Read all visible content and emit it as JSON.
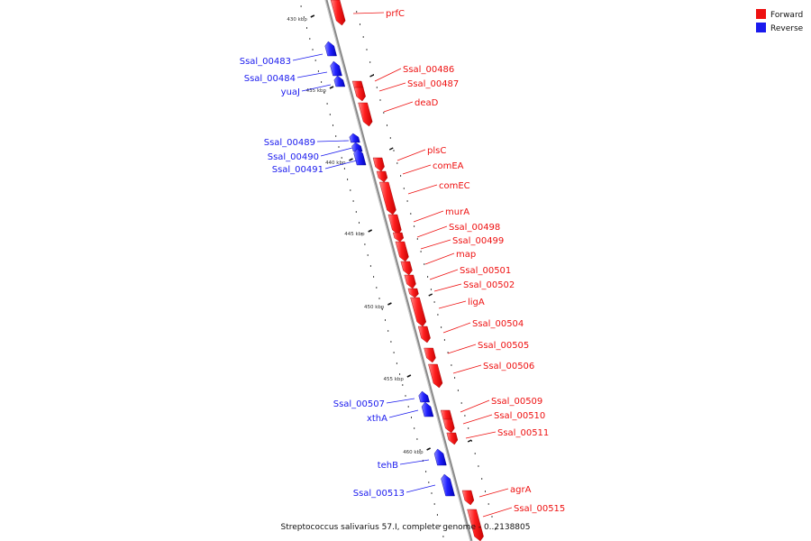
{
  "colors": {
    "forward": "#ee1111",
    "reverse": "#1a1aee",
    "backbone": "#8a8a8a"
  },
  "legend": [
    {
      "label": "Forward",
      "strand": "forward"
    },
    {
      "label": "Reverse",
      "strand": "reverse"
    }
  ],
  "caption": "Streptococcus salivarius 57.I, complete genome - 0..2138805",
  "ticks": [
    "430 kbp",
    "435 kbp",
    "440 kbp",
    "445 kbp",
    "450 kbp",
    "455 kbp",
    "460 kbp"
  ],
  "genes": [
    {
      "name": "prfC",
      "strand": "forward"
    },
    {
      "name": "Ssal_00483",
      "strand": "reverse"
    },
    {
      "name": "Ssal_00484",
      "strand": "reverse"
    },
    {
      "name": "yuaJ",
      "strand": "reverse"
    },
    {
      "name": "Ssal_00486",
      "strand": "forward"
    },
    {
      "name": "Ssal_00487",
      "strand": "forward"
    },
    {
      "name": "deaD",
      "strand": "forward"
    },
    {
      "name": "Ssal_00489",
      "strand": "reverse"
    },
    {
      "name": "Ssal_00490",
      "strand": "reverse"
    },
    {
      "name": "Ssal_00491",
      "strand": "reverse"
    },
    {
      "name": "plsC",
      "strand": "forward"
    },
    {
      "name": "comEA",
      "strand": "forward"
    },
    {
      "name": "comEC",
      "strand": "forward"
    },
    {
      "name": "murA",
      "strand": "forward"
    },
    {
      "name": "Ssal_00498",
      "strand": "forward"
    },
    {
      "name": "Ssal_00499",
      "strand": "forward"
    },
    {
      "name": "map",
      "strand": "forward"
    },
    {
      "name": "Ssal_00501",
      "strand": "forward"
    },
    {
      "name": "Ssal_00502",
      "strand": "forward"
    },
    {
      "name": "ligA",
      "strand": "forward"
    },
    {
      "name": "Ssal_00504",
      "strand": "forward"
    },
    {
      "name": "Ssal_00505",
      "strand": "forward"
    },
    {
      "name": "Ssal_00506",
      "strand": "forward"
    },
    {
      "name": "Ssal_00507",
      "strand": "reverse"
    },
    {
      "name": "xthA",
      "strand": "reverse"
    },
    {
      "name": "Ssal_00509",
      "strand": "forward"
    },
    {
      "name": "Ssal_00510",
      "strand": "forward"
    },
    {
      "name": "Ssal_00511",
      "strand": "forward"
    },
    {
      "name": "tehB",
      "strand": "reverse"
    },
    {
      "name": "Ssal_00513",
      "strand": "reverse"
    },
    {
      "name": "agrA",
      "strand": "forward"
    },
    {
      "name": "Ssal_00515",
      "strand": "forward"
    }
  ]
}
